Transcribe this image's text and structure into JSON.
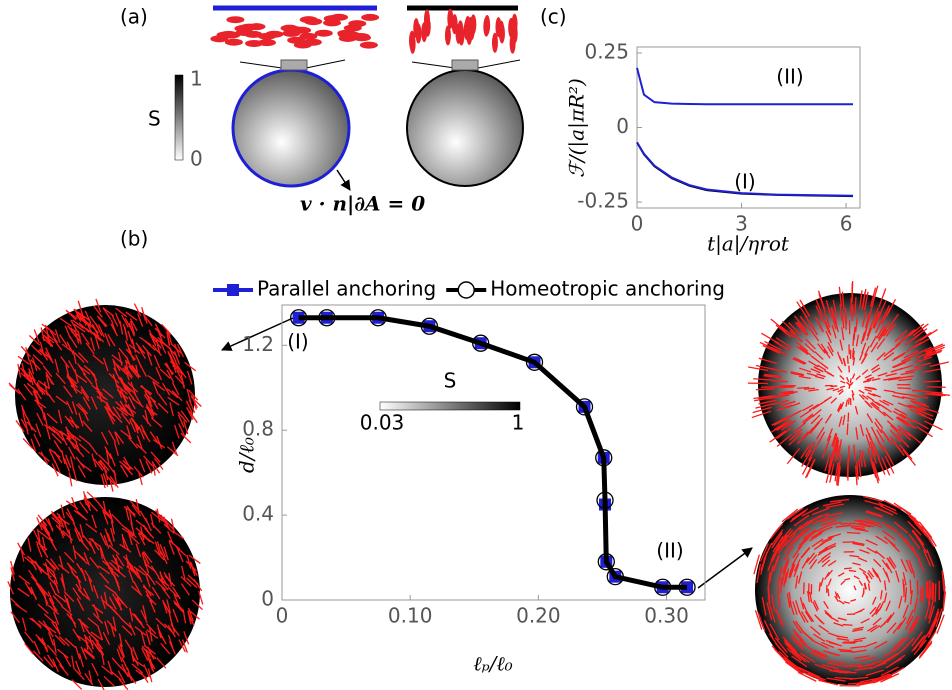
{
  "figure": {
    "panel_labels": [
      "(a)",
      "(b)",
      "(c)"
    ],
    "schematic": {
      "colorbar_title": "S",
      "colorbar_ticks": [
        1,
        0
      ],
      "equation": "v · n|∂A = 0"
    }
  },
  "chart_data": [
    {
      "type": "line",
      "xlabel": "t|a|/ηrot",
      "ylabel": "ℱ/(|a|πR²)",
      "x": [
        0,
        0.2,
        0.5,
        1,
        1.5,
        2,
        3,
        4,
        5,
        6.2
      ],
      "series": [
        {
          "color": "#1f1fd6",
          "values": [
            0.2,
            0.11,
            0.085,
            0.08,
            0.079,
            0.078,
            0.078,
            0.078,
            0.078,
            0.078
          ]
        },
        {
          "color": "#000000",
          "values": [
            -0.05,
            -0.09,
            -0.13,
            -0.17,
            -0.195,
            -0.21,
            -0.222,
            -0.226,
            -0.228,
            -0.23
          ]
        },
        {
          "color": "#1f1fd6",
          "values": [
            -0.05,
            -0.088,
            -0.128,
            -0.168,
            -0.193,
            -0.208,
            -0.22,
            -0.225,
            -0.227,
            -0.229
          ]
        }
      ],
      "annotations": [
        "(II)",
        "(I)"
      ],
      "xlim": [
        0,
        6.4
      ],
      "ylim": [
        -0.27,
        0.27
      ],
      "xticks": [
        0,
        3,
        6
      ],
      "yticks": [
        0.25,
        0,
        -0.25
      ]
    },
    {
      "type": "line",
      "xlabel": "ℓₚ/ℓ₀",
      "ylabel": "d/ℓ₀",
      "x": [
        0.013,
        0.035,
        0.075,
        0.115,
        0.155,
        0.197,
        0.236,
        0.251,
        0.252,
        0.253,
        0.26,
        0.297,
        0.316
      ],
      "series": [
        {
          "name": "Parallel anchoring",
          "color": "#1f1fd6",
          "marker": "square",
          "values": [
            1.33,
            1.33,
            1.33,
            1.29,
            1.21,
            1.12,
            0.91,
            0.67,
            0.45,
            0.18,
            0.11,
            0.06,
            0.06
          ]
        },
        {
          "name": "Homeotropic anchoring",
          "color": "#000000",
          "marker": "circle",
          "values": [
            1.33,
            1.33,
            1.33,
            1.29,
            1.21,
            1.12,
            0.91,
            0.67,
            0.47,
            0.18,
            0.11,
            0.06,
            0.06
          ]
        }
      ],
      "annotations": [
        "(I)",
        "(II)"
      ],
      "colorbar": {
        "title": "S",
        "ticks": [
          0.03,
          1
        ]
      },
      "xlim": [
        0,
        0.33
      ],
      "ylim": [
        0,
        1.39
      ],
      "xticks": [
        0,
        {
          "value": 0.1,
          "label": "0.10"
        },
        {
          "value": 0.2,
          "label": "0.20"
        },
        {
          "value": 0.3,
          "label": "0.30"
        }
      ],
      "yticks": [
        0,
        0.4,
        0.8,
        1.2
      ]
    }
  ]
}
